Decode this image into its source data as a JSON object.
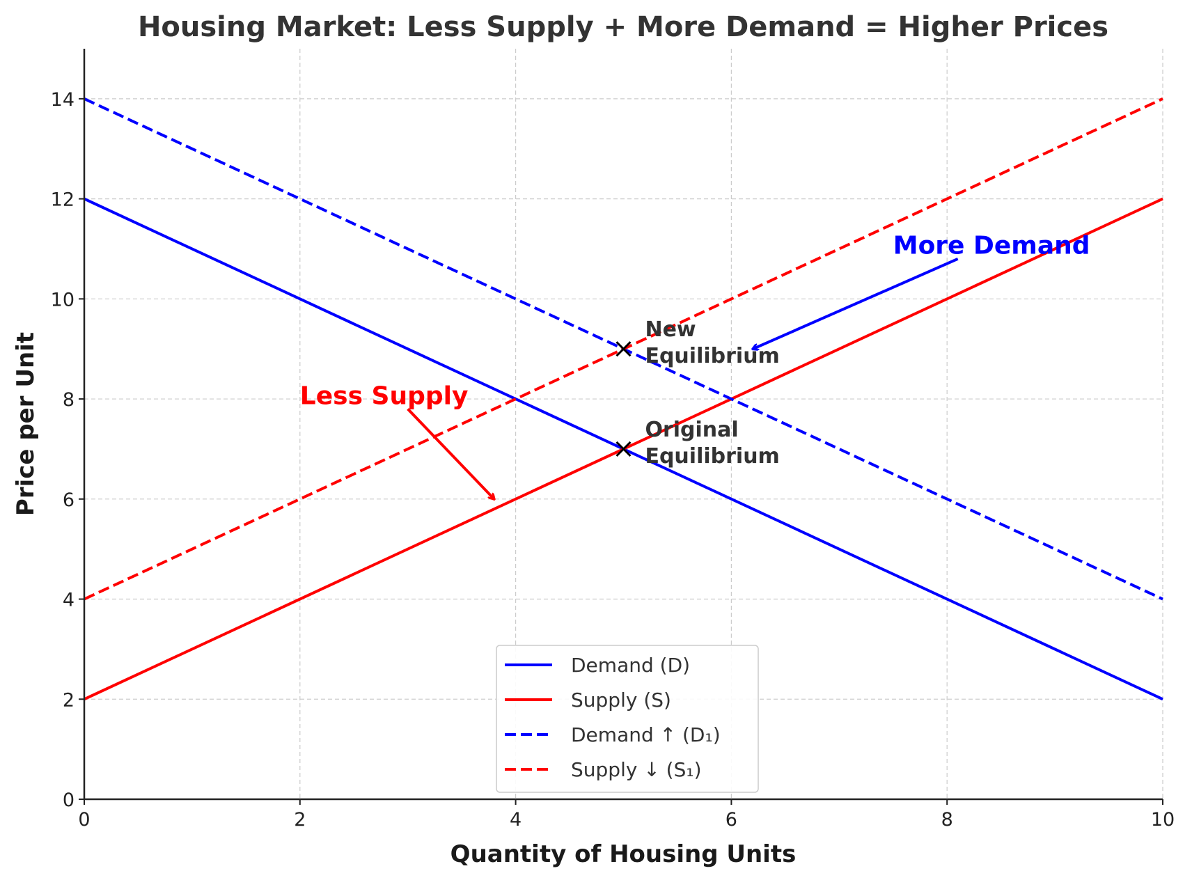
{
  "chart_data": {
    "type": "line",
    "title": "Housing Market: Less Supply + More Demand = Higher Prices",
    "xlabel": "Quantity of Housing Units",
    "ylabel": "Price per Unit",
    "xlim": [
      0,
      10
    ],
    "ylim": [
      0,
      15
    ],
    "xticks": [
      0,
      2,
      4,
      6,
      8,
      10
    ],
    "yticks": [
      0,
      2,
      4,
      6,
      8,
      10,
      12,
      14
    ],
    "grid": true,
    "legend_position": "lower-center",
    "series": [
      {
        "name": "Demand (D)",
        "color": "#0000ff",
        "style": "solid",
        "x": [
          0,
          10
        ],
        "y": [
          12,
          2
        ]
      },
      {
        "name": "Supply (S)",
        "color": "#ff0000",
        "style": "solid",
        "x": [
          0,
          10
        ],
        "y": [
          2,
          12
        ]
      },
      {
        "name": "Demand ↑ (D₁)",
        "color": "#0000ff",
        "style": "dashed",
        "x": [
          0,
          10
        ],
        "y": [
          14,
          4
        ]
      },
      {
        "name": "Supply ↓ (S₁)",
        "color": "#ff0000",
        "style": "dashed",
        "x": [
          0,
          10
        ],
        "y": [
          4,
          14
        ]
      }
    ],
    "points": [
      {
        "label": "Original\nEquilibrium",
        "x": 5,
        "y": 7
      },
      {
        "label": "New\nEquilibrium",
        "x": 5,
        "y": 9
      }
    ],
    "annotations": [
      {
        "text": "More Demand",
        "color": "#0000ff",
        "text_at": [
          7.5,
          10.9
        ],
        "arrow_from": [
          8.1,
          10.8
        ],
        "arrow_to": [
          6.2,
          9.0
        ]
      },
      {
        "text": "Less Supply",
        "color": "#ff0000",
        "text_at": [
          2.0,
          7.9
        ],
        "arrow_from": [
          3.0,
          7.8
        ],
        "arrow_to": [
          3.8,
          6.0
        ]
      }
    ]
  }
}
